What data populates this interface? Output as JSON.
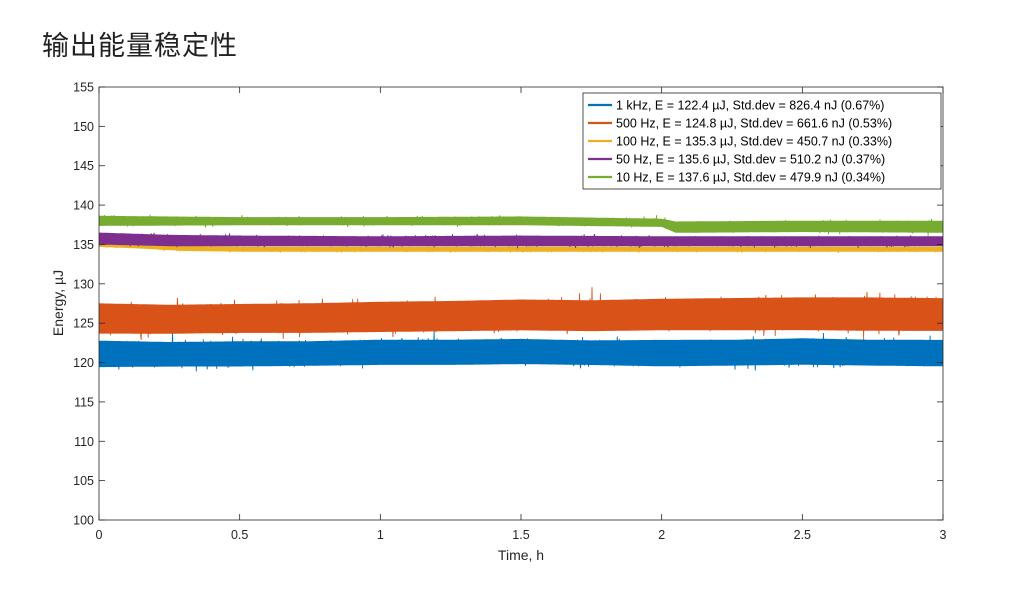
{
  "page": {
    "title": "输出能量稳定性"
  },
  "chart_data": {
    "type": "line",
    "xlabel": "Time, h",
    "ylabel": "Energy, µJ",
    "xlim": [
      0,
      3
    ],
    "ylim": [
      100,
      155
    ],
    "xticks": [
      "0",
      "0.5",
      "1",
      "1.5",
      "2",
      "2.5",
      "3"
    ],
    "xtick_values": [
      0,
      0.5,
      1,
      1.5,
      2,
      2.5,
      3
    ],
    "yticks": [
      "100",
      "105",
      "110",
      "115",
      "120",
      "125",
      "130",
      "135",
      "140",
      "145",
      "150",
      "155"
    ],
    "ytick_values": [
      100,
      105,
      110,
      115,
      120,
      125,
      130,
      135,
      140,
      145,
      150,
      155
    ],
    "grid": false,
    "legend_position": "top-right",
    "series": [
      {
        "name": "1 kHz, E = 122.4 µJ, Std.dev =  826.4 nJ (0.67%)",
        "color": "#0072BD",
        "band": {
          "x": [
            0,
            0.25,
            0.5,
            0.75,
            1,
            1.25,
            1.5,
            1.75,
            2,
            2.25,
            2.5,
            2.75,
            3
          ],
          "upper": [
            123.2,
            123.0,
            123.1,
            123.1,
            123.3,
            123.3,
            123.4,
            123.2,
            123.3,
            123.3,
            123.5,
            123.3,
            123.3
          ],
          "lower": [
            119.0,
            119.1,
            119.1,
            119.2,
            119.3,
            119.3,
            119.4,
            119.3,
            119.1,
            119.2,
            119.3,
            119.2,
            119.1
          ]
        }
      },
      {
        "name": "500 Hz, E = 124.8 µJ, Std.dev =  661.6 nJ (0.53%)",
        "color": "#D95319",
        "band": {
          "x": [
            0,
            0.25,
            0.5,
            0.75,
            1,
            1.25,
            1.5,
            1.75,
            2,
            2.25,
            2.5,
            2.75,
            3
          ],
          "upper": [
            128.0,
            127.8,
            127.9,
            128.0,
            128.2,
            128.3,
            128.5,
            128.4,
            128.6,
            128.7,
            128.8,
            128.8,
            128.7
          ],
          "lower": [
            123.2,
            123.2,
            123.3,
            123.3,
            123.4,
            123.5,
            123.6,
            123.5,
            123.6,
            123.6,
            123.6,
            123.5,
            123.5
          ]
        }
      },
      {
        "name": "100 Hz, E = 135.3 µJ, Std.dev =  450.7 nJ (0.33%)",
        "color": "#EDB120",
        "band": {
          "x": [
            0,
            0.15,
            0.3,
            0.5,
            1,
            1.5,
            2,
            2.5,
            3
          ],
          "upper": [
            135.4,
            135.2,
            134.9,
            134.8,
            134.8,
            134.8,
            134.8,
            134.8,
            134.8
          ],
          "lower": [
            134.6,
            134.4,
            134.1,
            134.0,
            134.0,
            134.0,
            134.0,
            134.0,
            134.0
          ]
        }
      },
      {
        "name": "50 Hz, E = 135.6 µJ, Std.dev =  510.2 nJ (0.37%)",
        "color": "#7E2F8E",
        "band": {
          "x": [
            0,
            0.25,
            0.5,
            1,
            1.5,
            2,
            2.5,
            3
          ],
          "upper": [
            136.7,
            136.4,
            136.3,
            136.2,
            136.3,
            136.2,
            136.2,
            136.2
          ],
          "lower": [
            134.8,
            134.6,
            134.6,
            134.6,
            134.6,
            134.6,
            134.6,
            134.6
          ]
        }
      },
      {
        "name": "10 Hz, E = 137.6 µJ, Std.dev =  479.9 nJ (0.34%)",
        "color": "#77AC30",
        "band": {
          "x": [
            0,
            0.5,
            1,
            1.5,
            2,
            2.05,
            2.5,
            3
          ],
          "upper": [
            138.8,
            138.6,
            138.6,
            138.7,
            138.4,
            138.1,
            138.2,
            138.2
          ],
          "lower": [
            137.2,
            137.3,
            137.3,
            137.3,
            137.1,
            136.3,
            136.4,
            136.3
          ]
        }
      }
    ]
  }
}
